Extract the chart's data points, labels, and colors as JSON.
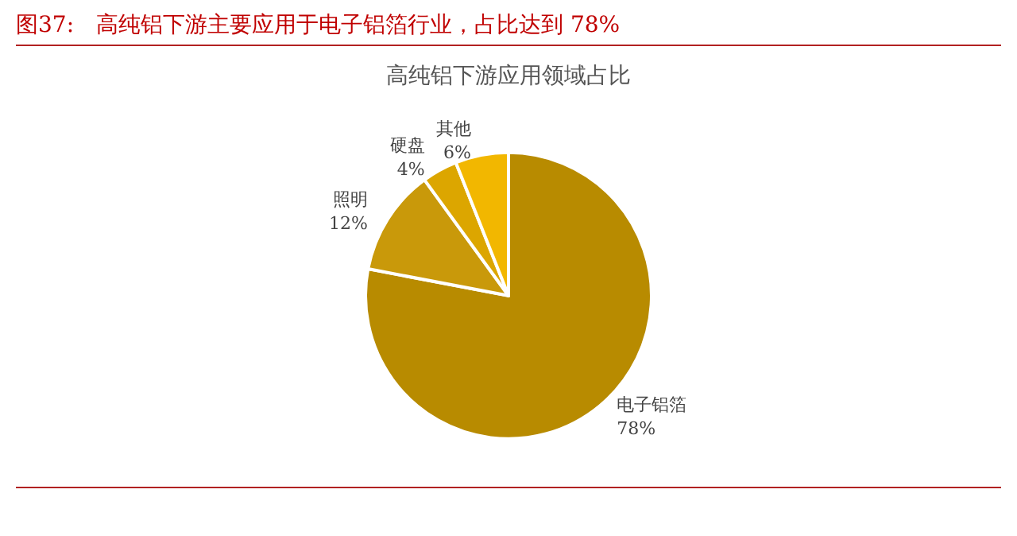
{
  "chart_data": {
    "type": "pie",
    "title": "图37:　高纯铝下游主要应用于电子铝箔行业，占比达到 78%",
    "subtitle": "高纯铝下游应用领域占比",
    "categories": [
      "电子铝箔",
      "照明",
      "硬盘",
      "其他"
    ],
    "values": [
      78,
      12,
      4,
      6
    ],
    "value_labels": [
      "78%",
      "12%",
      "4%",
      "6%"
    ],
    "colors": [
      "#b88b00",
      "#c9990a",
      "#dca600",
      "#f2b700"
    ],
    "legend": false
  }
}
